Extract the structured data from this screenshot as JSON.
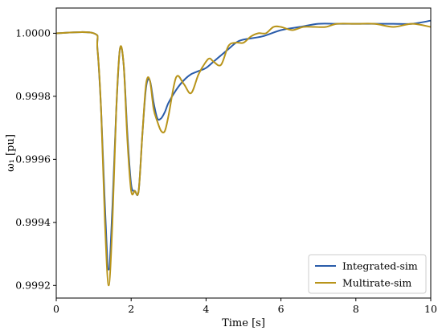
{
  "chart_data": {
    "type": "line",
    "title": "",
    "xlabel": "Time [s]",
    "ylabel": "ω₁ [pu]",
    "xlim": [
      0,
      10
    ],
    "ylim": [
      0.99916,
      1.00008
    ],
    "xticks": [
      0,
      2,
      4,
      6,
      8,
      10
    ],
    "xtick_labels": [
      "0",
      "2",
      "4",
      "6",
      "8",
      "10"
    ],
    "yticks": [
      0.9992,
      0.9994,
      0.9996,
      0.9998,
      1.0
    ],
    "ytick_labels": [
      "0.9992",
      "0.9994",
      "0.9996",
      "0.9998",
      "1.0000"
    ],
    "grid": false,
    "legend_position": "lower-right",
    "series": [
      {
        "name": "Integrated-sim",
        "color": "#2a5caa",
        "x": [
          0,
          1.0,
          1.1,
          1.2,
          1.3,
          1.4,
          1.5,
          1.6,
          1.7,
          1.8,
          1.9,
          2.0,
          2.1,
          2.2,
          2.3,
          2.4,
          2.5,
          2.6,
          2.7,
          2.8,
          2.9,
          3.0,
          3.2,
          3.4,
          3.6,
          3.8,
          4.0,
          4.2,
          4.4,
          4.6,
          4.8,
          5.0,
          5.5,
          6.0,
          6.5,
          7.0,
          7.5,
          8.0,
          8.5,
          9.0,
          9.5,
          10.0
        ],
        "y": [
          1.0,
          1.0,
          0.99995,
          0.99975,
          0.99945,
          0.99925,
          0.99945,
          0.99975,
          0.99995,
          0.9999,
          0.99968,
          0.99952,
          0.9995,
          0.9995,
          0.99968,
          0.99983,
          0.99985,
          0.99978,
          0.99973,
          0.99973,
          0.99975,
          0.99978,
          0.99982,
          0.99985,
          0.99987,
          0.99988,
          0.99989,
          0.99991,
          0.99993,
          0.99995,
          0.99997,
          0.99998,
          0.99999,
          1.00001,
          1.00002,
          1.00003,
          1.00003,
          1.00003,
          1.00003,
          1.00003,
          1.00003,
          1.00004
        ]
      },
      {
        "name": "Multirate-sim",
        "color": "#b8941a",
        "x": [
          0,
          1.0,
          1.1,
          1.2,
          1.3,
          1.4,
          1.5,
          1.6,
          1.7,
          1.8,
          1.9,
          2.0,
          2.1,
          2.2,
          2.3,
          2.4,
          2.5,
          2.6,
          2.7,
          2.8,
          2.9,
          3.0,
          3.2,
          3.4,
          3.6,
          3.8,
          4.0,
          4.1,
          4.2,
          4.4,
          4.6,
          4.8,
          5.0,
          5.2,
          5.4,
          5.6,
          5.8,
          6.0,
          6.3,
          6.6,
          6.9,
          7.2,
          7.5,
          8.0,
          8.5,
          9.0,
          9.5,
          10.0
        ],
        "y": [
          1.0,
          1.0,
          0.99995,
          0.99975,
          0.9994,
          0.9992,
          0.9994,
          0.99975,
          0.99995,
          0.9999,
          0.99966,
          0.9995,
          0.9995,
          0.9995,
          0.99968,
          0.99984,
          0.99985,
          0.99976,
          0.99972,
          0.99969,
          0.99969,
          0.99974,
          0.99986,
          0.99984,
          0.99981,
          0.99987,
          0.99991,
          0.99992,
          0.99991,
          0.9999,
          0.99996,
          0.99997,
          0.99997,
          0.99999,
          1.0,
          1.0,
          1.00002,
          1.00002,
          1.00001,
          1.00002,
          1.00002,
          1.00002,
          1.00003,
          1.00003,
          1.00003,
          1.00002,
          1.00003,
          1.00002
        ]
      }
    ]
  }
}
